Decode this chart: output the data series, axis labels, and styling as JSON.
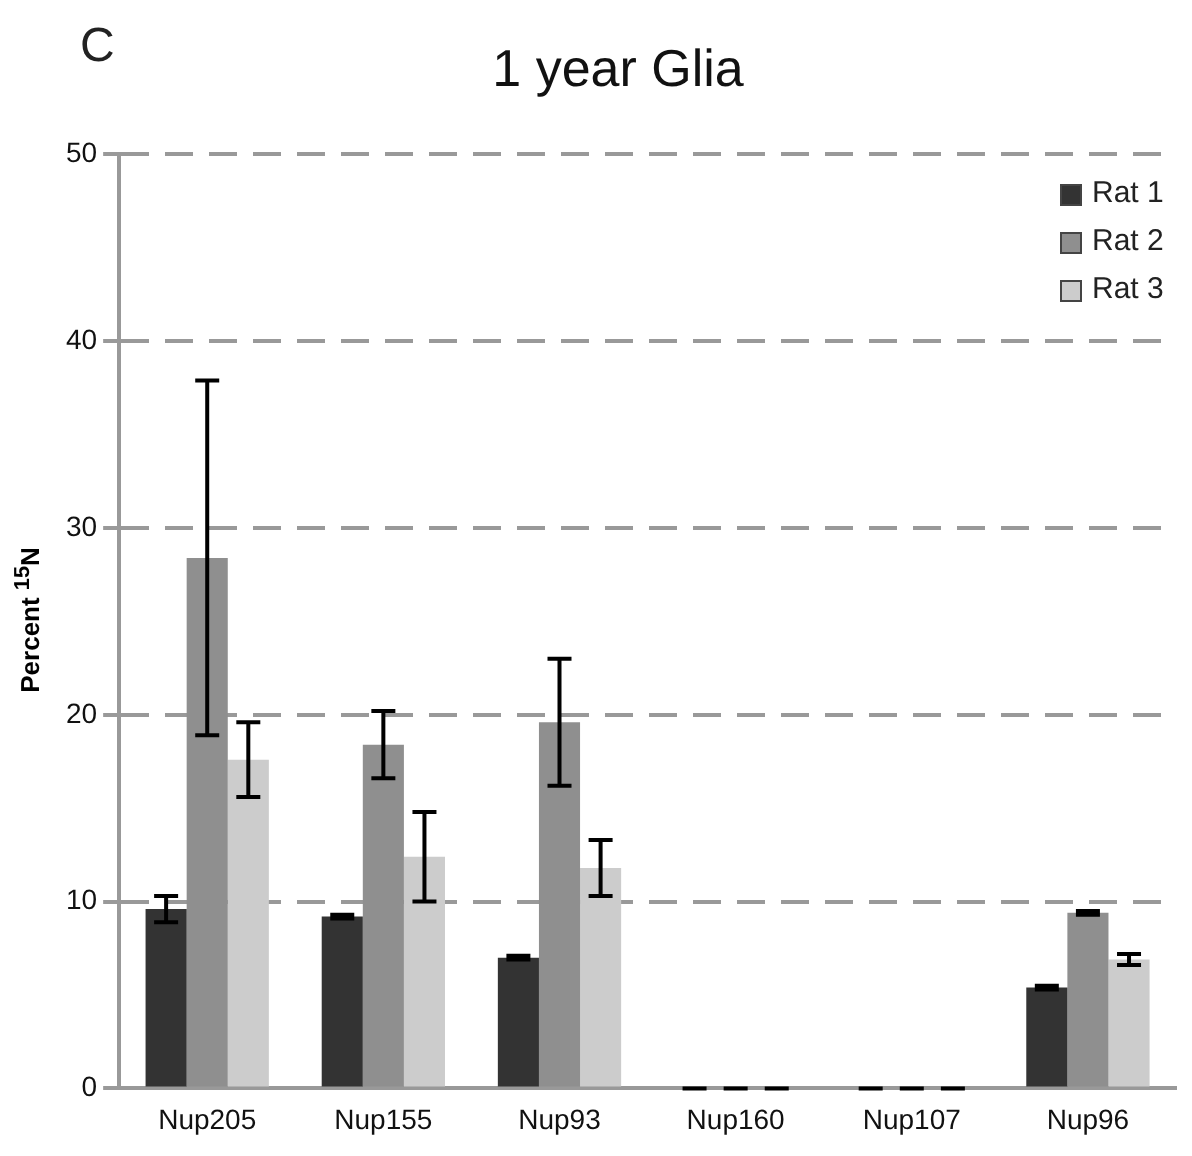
{
  "chart_data": {
    "type": "bar",
    "title": "1 year Glia",
    "ylabel": "Percent $^{15}$N",
    "annotations": [
      "C"
    ],
    "categories": [
      "Nup205",
      "Nup155",
      "Nup93",
      "Nup160",
      "Nup107",
      "Nup96"
    ],
    "series": [
      {
        "name": "Rat 1",
        "color": "#333333",
        "values": [
          9.6,
          9.2,
          7.0,
          0,
          0,
          5.4
        ],
        "errors": [
          0.7,
          0.1,
          0.1,
          0,
          0,
          0.1
        ]
      },
      {
        "name": "Rat 2",
        "color": "#8f8f8f",
        "values": [
          28.4,
          18.4,
          19.6,
          0,
          0,
          9.4
        ],
        "errors": [
          9.5,
          1.8,
          3.4,
          0,
          0,
          0.1
        ]
      },
      {
        "name": "Rat 3",
        "color": "#cccccc",
        "values": [
          17.6,
          12.4,
          11.8,
          0,
          0,
          6.9
        ],
        "errors": [
          2.0,
          2.4,
          1.5,
          0,
          0,
          0.3
        ]
      }
    ],
    "ylim": [
      0,
      50
    ],
    "yticks": [
      0,
      10,
      20,
      30,
      40,
      50
    ],
    "grid": "y",
    "legend": "top right"
  }
}
